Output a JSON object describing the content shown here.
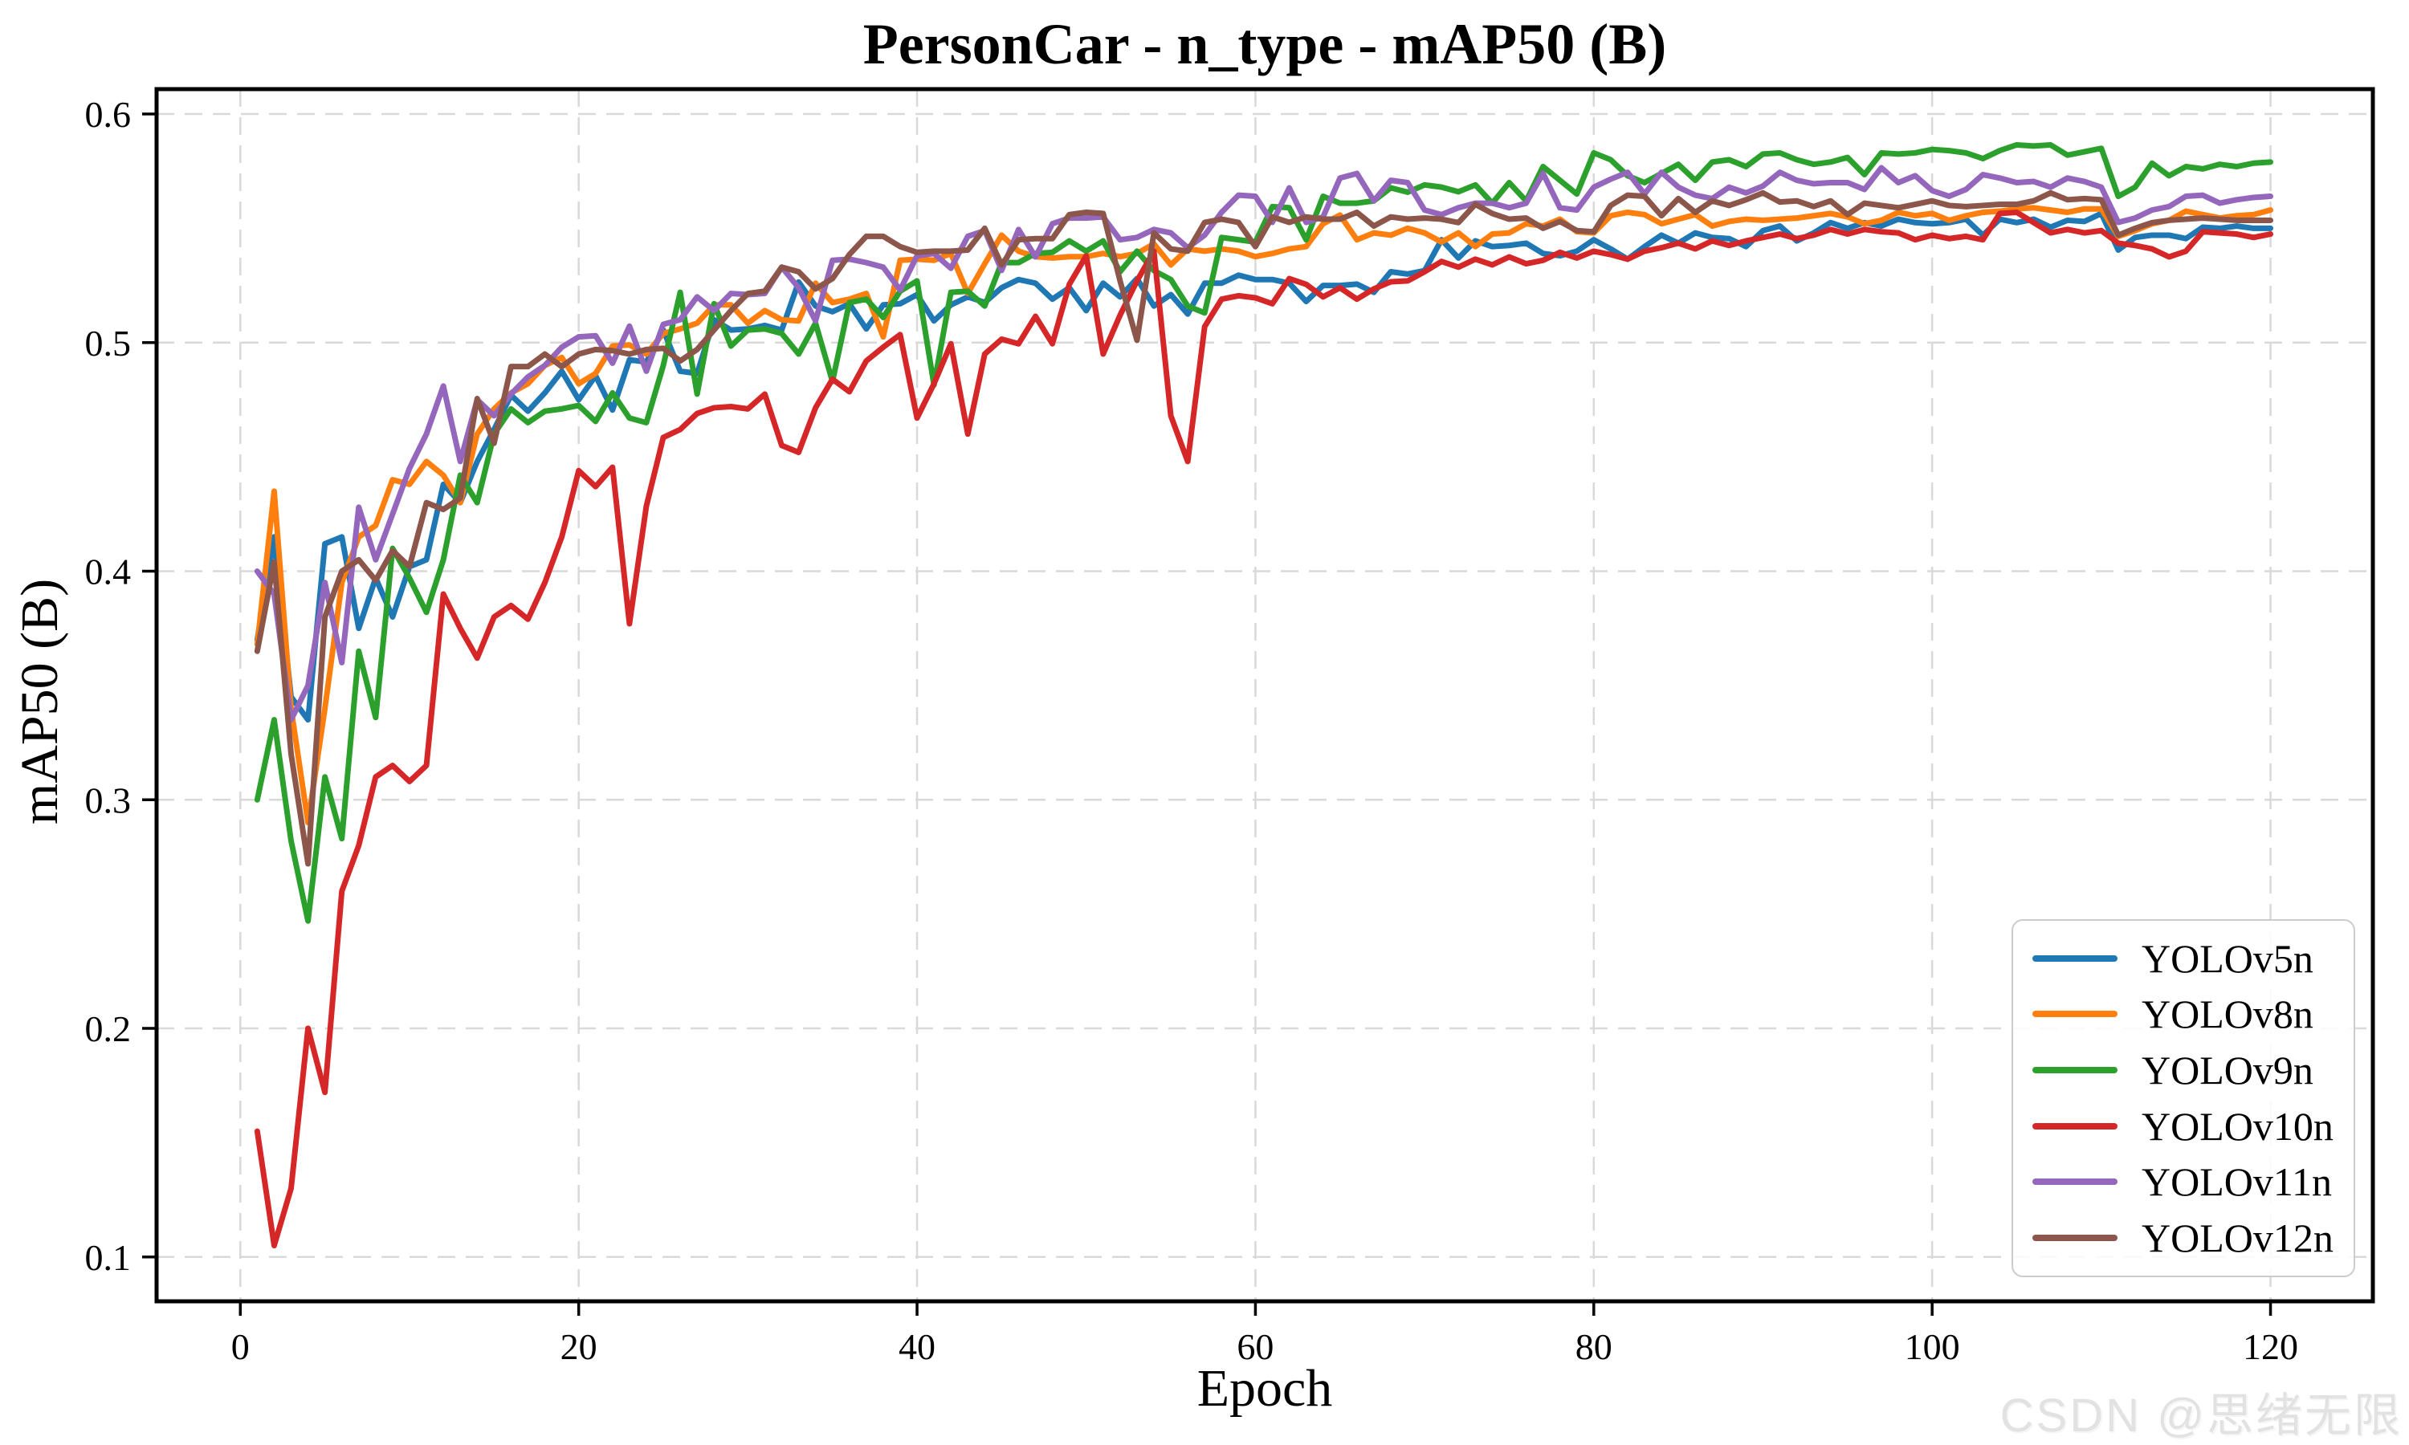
{
  "watermark": "CSDN @思绪无限",
  "chart_data": {
    "type": "line",
    "title": "PersonCar - n_type - mAP50 (B)",
    "xlabel": "Epoch",
    "ylabel": "mAP50 (B)",
    "xlim": [
      -4.95,
      126.05
    ],
    "ylim": [
      0.0806,
      0.6109
    ],
    "grid": true,
    "legend_position": "lower right",
    "xticks": [
      0,
      20,
      40,
      60,
      80,
      100,
      120
    ],
    "xtick_labels": [
      "0",
      "20",
      "40",
      "60",
      "80",
      "100",
      "120"
    ],
    "yticks": [
      0.1,
      0.2,
      0.3,
      0.4,
      0.5,
      0.6
    ],
    "ytick_labels": [
      "0.1",
      "0.2",
      "0.3",
      "0.4",
      "0.5",
      "0.6"
    ],
    "epoch_start": 1,
    "series": [
      {
        "name": "YOLOv5n",
        "color": "#1f77b4",
        "values": [
          0.37,
          0.415,
          0.345,
          0.335,
          0.412,
          0.415,
          0.375,
          0.397,
          0.38,
          0.402,
          0.405,
          0.438,
          0.43,
          0.448,
          0.462,
          0.477,
          0.47,
          0.478,
          0.4875,
          0.475,
          0.4855,
          0.4705,
          0.4925,
          0.4915,
          0.5055,
          0.4875,
          0.4865,
          0.51,
          0.5055,
          0.506,
          0.5075,
          0.5055,
          0.5265,
          0.516,
          0.5135,
          0.517,
          0.506,
          0.5165,
          0.517,
          0.521,
          0.5095,
          0.5165,
          0.52,
          0.5176,
          0.524,
          0.5276,
          0.526,
          0.519,
          0.524,
          0.514,
          0.526,
          0.52,
          0.528,
          0.516,
          0.521,
          0.5125,
          0.526,
          0.526,
          0.5295,
          0.5276,
          0.5276,
          0.526,
          0.518,
          0.525,
          0.525,
          0.5256,
          0.522,
          0.531,
          0.53,
          0.5315,
          0.545,
          0.537,
          0.5445,
          0.542,
          0.5425,
          0.5435,
          0.539,
          0.538,
          0.54,
          0.545,
          0.541,
          0.5365,
          0.542,
          0.547,
          0.5435,
          0.548,
          0.546,
          0.5455,
          0.542,
          0.549,
          0.551,
          0.5445,
          0.548,
          0.5525,
          0.55,
          0.5525,
          0.551,
          0.554,
          0.5525,
          0.552,
          0.5525,
          0.554,
          0.547,
          0.554,
          0.5525,
          0.554,
          0.5505,
          0.5535,
          0.553,
          0.5565,
          0.5405,
          0.546,
          0.547,
          0.547,
          0.5455,
          0.5505,
          0.55,
          0.551,
          0.55,
          0.55
        ]
      },
      {
        "name": "YOLOv8n",
        "color": "#ff7f0e",
        "values": [
          0.368,
          0.435,
          0.34,
          0.29,
          0.34,
          0.395,
          0.415,
          0.42,
          0.44,
          0.438,
          0.448,
          0.442,
          0.43,
          0.46,
          0.471,
          0.478,
          0.482,
          0.49,
          0.4935,
          0.482,
          0.4865,
          0.4985,
          0.499,
          0.495,
          0.504,
          0.506,
          0.5085,
          0.5165,
          0.5165,
          0.5085,
          0.514,
          0.51,
          0.5095,
          0.526,
          0.5175,
          0.519,
          0.5215,
          0.5025,
          0.536,
          0.5365,
          0.536,
          0.539,
          0.5215,
          0.5345,
          0.547,
          0.54,
          0.5376,
          0.537,
          0.5376,
          0.5376,
          0.539,
          0.5376,
          0.539,
          0.5432,
          0.534,
          0.541,
          0.54,
          0.541,
          0.54,
          0.5376,
          0.539,
          0.541,
          0.542,
          0.552,
          0.5558,
          0.545,
          0.548,
          0.547,
          0.55,
          0.548,
          0.544,
          0.548,
          0.542,
          0.5475,
          0.548,
          0.552,
          0.551,
          0.554,
          0.5485,
          0.548,
          0.5555,
          0.557,
          0.556,
          0.552,
          0.554,
          0.556,
          0.551,
          0.553,
          0.554,
          0.5535,
          0.554,
          0.5545,
          0.5555,
          0.5565,
          0.555,
          0.552,
          0.5535,
          0.557,
          0.5555,
          0.5565,
          0.5535,
          0.5555,
          0.557,
          0.5575,
          0.5585,
          0.559,
          0.558,
          0.557,
          0.5585,
          0.5585,
          0.5465,
          0.549,
          0.552,
          0.5535,
          0.5575,
          0.556,
          0.5545,
          0.5555,
          0.556,
          0.558
        ]
      },
      {
        "name": "YOLOv9n",
        "color": "#2ca02c",
        "values": [
          0.3,
          0.335,
          0.282,
          0.247,
          0.31,
          0.283,
          0.365,
          0.336,
          0.41,
          0.397,
          0.382,
          0.405,
          0.442,
          0.43,
          0.46,
          0.471,
          0.465,
          0.47,
          0.471,
          0.4725,
          0.4655,
          0.478,
          0.467,
          0.465,
          0.49,
          0.522,
          0.4775,
          0.517,
          0.4985,
          0.5055,
          0.506,
          0.504,
          0.495,
          0.5085,
          0.483,
          0.5175,
          0.519,
          0.511,
          0.5225,
          0.527,
          0.4815,
          0.522,
          0.5225,
          0.516,
          0.535,
          0.535,
          0.539,
          0.5395,
          0.5445,
          0.54,
          0.5445,
          0.531,
          0.54,
          0.5315,
          0.5276,
          0.516,
          0.513,
          0.546,
          0.545,
          0.544,
          0.5595,
          0.559,
          0.545,
          0.564,
          0.561,
          0.561,
          0.562,
          0.5677,
          0.5658,
          0.569,
          0.568,
          0.566,
          0.569,
          0.561,
          0.57,
          0.562,
          0.577,
          0.571,
          0.565,
          0.583,
          0.58,
          0.573,
          0.57,
          0.574,
          0.578,
          0.571,
          0.579,
          0.58,
          0.577,
          0.5825,
          0.583,
          0.58,
          0.578,
          0.579,
          0.581,
          0.5735,
          0.583,
          0.5825,
          0.583,
          0.5845,
          0.584,
          0.583,
          0.5805,
          0.584,
          0.5865,
          0.586,
          0.5865,
          0.582,
          0.5835,
          0.585,
          0.564,
          0.568,
          0.5785,
          0.573,
          0.577,
          0.576,
          0.578,
          0.577,
          0.5785,
          0.579
        ]
      },
      {
        "name": "YOLOv10n",
        "color": "#d62728",
        "values": [
          0.155,
          0.105,
          0.13,
          0.2,
          0.172,
          0.26,
          0.28,
          0.31,
          0.315,
          0.308,
          0.315,
          0.39,
          0.375,
          0.362,
          0.38,
          0.385,
          0.379,
          0.395,
          0.415,
          0.444,
          0.437,
          0.4455,
          0.377,
          0.4285,
          0.4585,
          0.462,
          0.469,
          0.4715,
          0.472,
          0.471,
          0.4775,
          0.455,
          0.452,
          0.4715,
          0.484,
          0.4785,
          0.492,
          0.498,
          0.5035,
          0.467,
          0.482,
          0.4995,
          0.46,
          0.495,
          0.5015,
          0.4995,
          0.5115,
          0.4995,
          0.5255,
          0.538,
          0.495,
          0.512,
          0.527,
          0.54,
          0.468,
          0.448,
          0.507,
          0.519,
          0.5205,
          0.5196,
          0.517,
          0.528,
          0.5255,
          0.52,
          0.524,
          0.519,
          0.5235,
          0.5266,
          0.527,
          0.531,
          0.5355,
          0.533,
          0.5365,
          0.534,
          0.5375,
          0.5345,
          0.536,
          0.5395,
          0.537,
          0.54,
          0.5385,
          0.5365,
          0.54,
          0.5415,
          0.5435,
          0.541,
          0.5445,
          0.5425,
          0.5445,
          0.546,
          0.5475,
          0.5455,
          0.547,
          0.5495,
          0.5475,
          0.5495,
          0.5485,
          0.548,
          0.545,
          0.547,
          0.5455,
          0.5465,
          0.545,
          0.5565,
          0.557,
          0.5525,
          0.548,
          0.5495,
          0.548,
          0.549,
          0.5435,
          0.5425,
          0.541,
          0.5375,
          0.54,
          0.5485,
          0.548,
          0.5475,
          0.546,
          0.5475
        ]
      },
      {
        "name": "YOLOv11n",
        "color": "#9467bd",
        "values": [
          0.4,
          0.39,
          0.335,
          0.35,
          0.395,
          0.36,
          0.428,
          0.405,
          0.425,
          0.445,
          0.46,
          0.481,
          0.448,
          0.475,
          0.468,
          0.4775,
          0.485,
          0.49,
          0.498,
          0.5025,
          0.503,
          0.491,
          0.5072,
          0.4875,
          0.508,
          0.51,
          0.52,
          0.514,
          0.5215,
          0.521,
          0.5215,
          0.533,
          0.524,
          0.5095,
          0.536,
          0.5365,
          0.535,
          0.533,
          0.523,
          0.538,
          0.539,
          0.5325,
          0.5465,
          0.549,
          0.5316,
          0.5495,
          0.5375,
          0.552,
          0.5545,
          0.5545,
          0.555,
          0.545,
          0.546,
          0.5495,
          0.548,
          0.5415,
          0.547,
          0.557,
          0.5645,
          0.564,
          0.5526,
          0.5677,
          0.5526,
          0.555,
          0.572,
          0.574,
          0.562,
          0.571,
          0.57,
          0.558,
          0.556,
          0.559,
          0.561,
          0.561,
          0.559,
          0.561,
          0.574,
          0.559,
          0.558,
          0.568,
          0.5715,
          0.5745,
          0.565,
          0.5745,
          0.568,
          0.5645,
          0.563,
          0.568,
          0.5655,
          0.5685,
          0.5745,
          0.571,
          0.5695,
          0.57,
          0.57,
          0.567,
          0.5765,
          0.57,
          0.573,
          0.5665,
          0.564,
          0.567,
          0.5735,
          0.572,
          0.57,
          0.5705,
          0.568,
          0.572,
          0.5705,
          0.568,
          0.5526,
          0.5545,
          0.558,
          0.5595,
          0.564,
          0.5645,
          0.561,
          0.5625,
          0.5635,
          0.564
        ]
      },
      {
        "name": "YOLOv12n",
        "color": "#8c564b",
        "values": [
          0.365,
          0.404,
          0.32,
          0.272,
          0.38,
          0.4,
          0.405,
          0.396,
          0.409,
          0.402,
          0.43,
          0.427,
          0.432,
          0.4755,
          0.456,
          0.4895,
          0.4895,
          0.495,
          0.4895,
          0.495,
          0.497,
          0.4965,
          0.495,
          0.497,
          0.4975,
          0.492,
          0.497,
          0.5055,
          0.514,
          0.5215,
          0.5225,
          0.533,
          0.531,
          0.5235,
          0.528,
          0.5385,
          0.5465,
          0.5465,
          0.542,
          0.5395,
          0.54,
          0.54,
          0.5405,
          0.55,
          0.534,
          0.545,
          0.5455,
          0.5455,
          0.556,
          0.557,
          0.5565,
          0.527,
          0.501,
          0.548,
          0.541,
          0.54,
          0.5526,
          0.554,
          0.5526,
          0.542,
          0.555,
          0.5526,
          0.555,
          0.554,
          0.554,
          0.557,
          0.551,
          0.555,
          0.554,
          0.5545,
          0.554,
          0.5525,
          0.5605,
          0.5565,
          0.554,
          0.5545,
          0.55,
          0.553,
          0.549,
          0.5485,
          0.56,
          0.5645,
          0.564,
          0.5555,
          0.563,
          0.557,
          0.562,
          0.56,
          0.5625,
          0.5655,
          0.5615,
          0.562,
          0.5595,
          0.562,
          0.556,
          0.561,
          0.56,
          0.559,
          0.5605,
          0.562,
          0.56,
          0.5595,
          0.56,
          0.5605,
          0.5605,
          0.562,
          0.5655,
          0.5625,
          0.563,
          0.5625,
          0.547,
          0.55,
          0.5525,
          0.5535,
          0.554,
          0.5545,
          0.554,
          0.5535,
          0.5535,
          0.5535
        ]
      }
    ]
  }
}
